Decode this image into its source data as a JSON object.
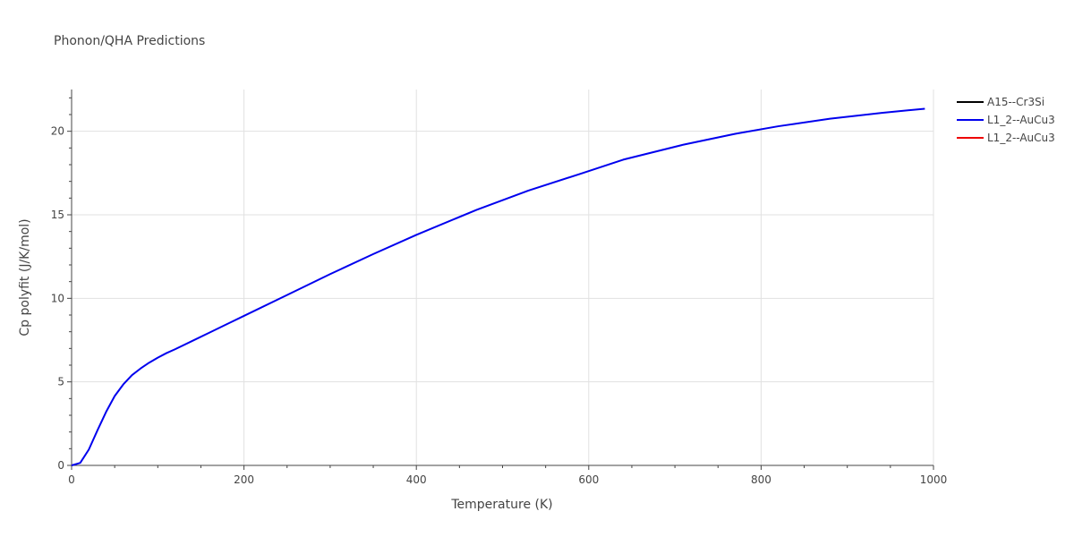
{
  "chart_data": {
    "type": "line",
    "title": "Phonon/QHA Predictions",
    "xlabel": "Temperature (K)",
    "ylabel": "Cp polyfit (J/K/mol)",
    "xlim": [
      0,
      1000
    ],
    "ylim": [
      0,
      22.5
    ],
    "xticks": [
      0,
      200,
      400,
      600,
      800,
      1000
    ],
    "yticks": [
      0,
      5,
      10,
      15,
      20
    ],
    "grid": true,
    "legend_position": "top-right",
    "series": [
      {
        "name": "A15--Cr3Si",
        "color": "#000000",
        "x": [],
        "y": []
      },
      {
        "name": "L1_2--AuCu3",
        "color": "#0000ee",
        "x": [
          0,
          10,
          20,
          30,
          40,
          50,
          60,
          70,
          80,
          90,
          100,
          110,
          120,
          140,
          160,
          180,
          200,
          250,
          300,
          350,
          400,
          470,
          530,
          590,
          640,
          710,
          770,
          820,
          880,
          940,
          990
        ],
        "y": [
          0,
          0.15,
          0.95,
          2.1,
          3.2,
          4.15,
          4.85,
          5.4,
          5.8,
          6.15,
          6.45,
          6.72,
          6.95,
          7.45,
          7.95,
          8.45,
          8.95,
          10.2,
          11.45,
          12.65,
          13.8,
          15.3,
          16.45,
          17.45,
          18.3,
          19.2,
          19.85,
          20.3,
          20.75,
          21.1,
          21.35
        ]
      },
      {
        "name": "L1_2--AuCu3",
        "color": "#ee0000",
        "x": [],
        "y": []
      }
    ]
  }
}
